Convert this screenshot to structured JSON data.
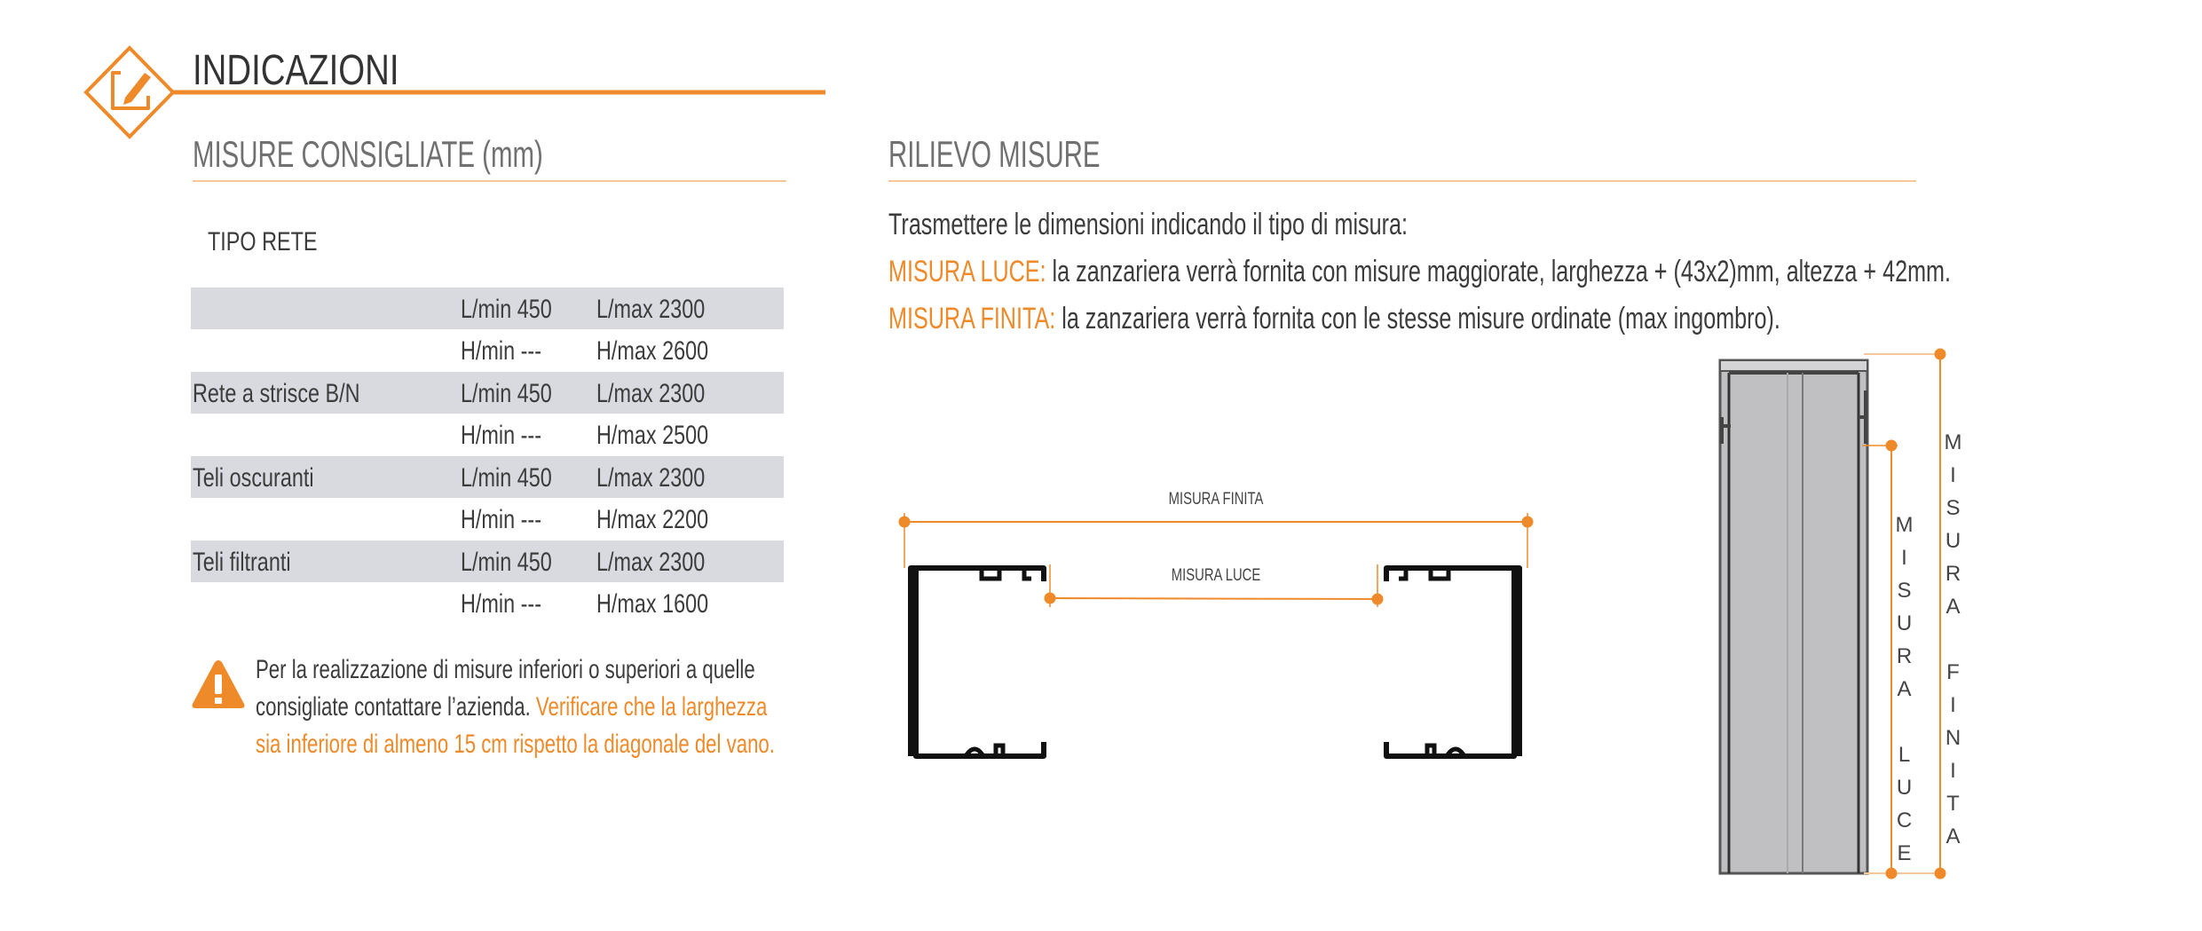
{
  "header": {
    "title": "INDICAZIONI",
    "icon": "pencil-edit-icon",
    "accent_color": "#ef8a2a"
  },
  "left": {
    "section_title": "MISURE CONSIGLIATE (mm)",
    "table_title": "TIPO RETE",
    "rows": [
      {
        "name": "",
        "min": "L/min 450",
        "max": "L/max 2300"
      },
      {
        "name": "",
        "min": "H/min  ---",
        "max": "H/max 2600"
      },
      {
        "name": "Rete a strisce B/N",
        "min": "L/min 450",
        "max": "L/max 2300"
      },
      {
        "name": "",
        "min": "H/min  ---",
        "max": "H/max 2500"
      },
      {
        "name": "Teli oscuranti",
        "min": "L/min 450",
        "max": "L/max 2300"
      },
      {
        "name": "",
        "min": "H/min  ---",
        "max": "H/max 2200"
      },
      {
        "name": "Teli filtranti",
        "min": "L/min 450",
        "max": "L/max 2300"
      },
      {
        "name": "",
        "min": "H/min  ---",
        "max": "H/max 1600"
      }
    ],
    "warning": {
      "icon": "warning-triangle-icon",
      "line1": "Per la realizzazione di misure inferiori o superiori a quelle",
      "line2_dark": "consigliate contattare l’azienda. ",
      "line2_orange": "Verificare che la larghezza",
      "line3": "sia inferiore di almeno 15 cm rispetto la diagonale del vano."
    }
  },
  "right": {
    "section_title": "RILIEVO MISURE",
    "intro": "Trasmettere le dimensioni indicando il tipo di misura:",
    "luce_label": "MISURA LUCE:",
    "luce_text": " la zanzariera verrà fornita con misure maggiorate, larghezza + (43x2)mm, altezza + 42mm.",
    "finita_label": "MISURA FINITA:",
    "finita_text": " la zanzariera verrà fornita con le stesse misure ordinate (max ingombro).",
    "diagram_h": {
      "finita": "MISURA FINITA",
      "luce": "MISURA LUCE"
    },
    "diagram_v": {
      "luce": "MISURA  LUCE",
      "finita": "MISURA  FINITA"
    }
  }
}
